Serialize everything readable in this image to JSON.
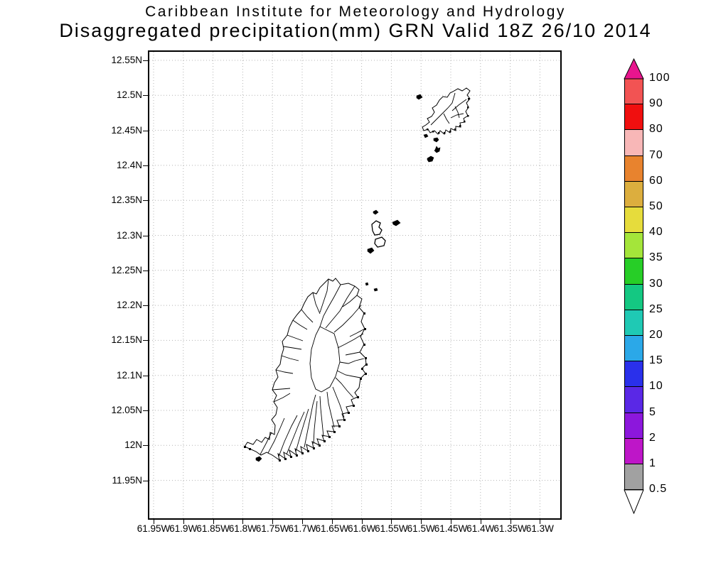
{
  "title": {
    "line1": "Caribbean Institute for Meteorology and Hydrology",
    "line2": "Disaggregated precipitation(mm) GRN Valid 18Z 26/10 2014"
  },
  "map": {
    "y_axis_labels": [
      "12.55N",
      "12.5N",
      "12.45N",
      "12.4N",
      "12.35N",
      "12.3N",
      "12.25N",
      "12.2N",
      "12.15N",
      "12.1N",
      "12.05N",
      "12N",
      "11.95N"
    ],
    "x_axis_labels": [
      "61.95W",
      "61.9W",
      "61.85W",
      "61.8W",
      "61.75W",
      "61.7W",
      "61.65W",
      "61.6W",
      "61.55W",
      "61.5W",
      "61.45W",
      "61.4W",
      "61.35W",
      "61.3W"
    ],
    "grid_color": "#b4b4b4",
    "coastline_color": "#000000"
  },
  "colorbar": {
    "unit": "mm",
    "labels_top_to_bottom": [
      "100",
      "90",
      "80",
      "70",
      "60",
      "50",
      "40",
      "35",
      "30",
      "25",
      "20",
      "15",
      "10",
      "5",
      "2",
      "1",
      "0.5"
    ],
    "segment_colors_top_to_bottom": [
      "#F25353",
      "#F00F0F",
      "#F8B7B7",
      "#E8832E",
      "#DCAE3E",
      "#E6DC3C",
      "#A4E53A",
      "#27CE27",
      "#14C882",
      "#1FC9B4",
      "#2BA8E8",
      "#2A30EB",
      "#5A28E6",
      "#8C17DC",
      "#BE16C8",
      "#A1A1A1"
    ],
    "above_max_color": "#E8158E",
    "below_min_color": "#FFFFFF"
  }
}
